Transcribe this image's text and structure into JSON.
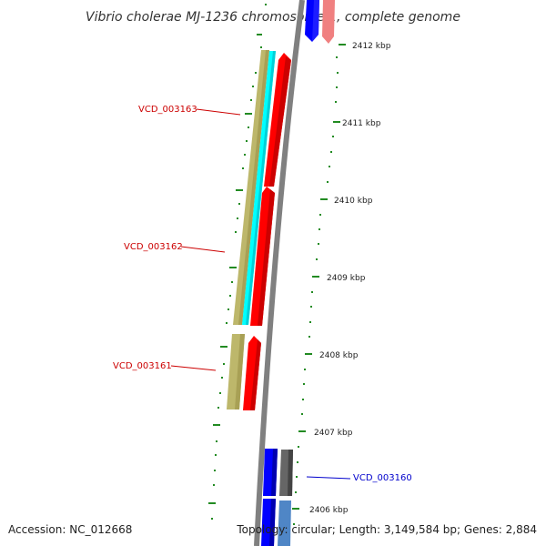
{
  "title": "Vibrio cholerae MJ-1236 chromosome 1, complete genome",
  "scale_labels": [
    "2412 kbp",
    "2411 kbp",
    "2410 kbp",
    "2409 kbp",
    "2408 kbp",
    "2407 kbp",
    "2406 kbp"
  ],
  "gene_labels": [
    "VCD_003163",
    "VCD_003162",
    "VCD_003161",
    "VCD_003160"
  ],
  "footer": {
    "accession": "Accession: NC_012668",
    "topology": "Topology: circular; Length: 3,149,584 bp; Genes: 2,884"
  },
  "colors": {
    "backbone": "#808080",
    "forward_cds": "#ff0000",
    "forward_cds_faded": "#f08080",
    "reverse_cds": "#0000ff",
    "reverse_cds_faded": "#4f86c6",
    "khaki_feature": "#bdb76b",
    "cyan_feature": "#00ffff",
    "gray_feature": "#666666",
    "tick": "#228b22",
    "label_red": "#cc0000",
    "label_blue": "#0000cc"
  }
}
